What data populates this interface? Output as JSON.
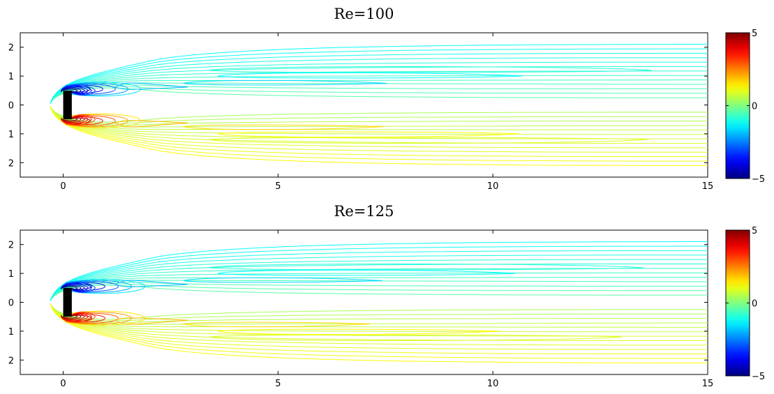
{
  "chart_data": [
    {
      "type": "contour",
      "title": "Re=100",
      "xlim": [
        -1,
        15
      ],
      "ylim": [
        -2.5,
        2.5
      ],
      "xticks": [
        0,
        5,
        10,
        15
      ],
      "yticks": [
        2,
        1,
        0,
        -1,
        -2
      ],
      "ytick_labels": [
        "2",
        "1",
        "0",
        "1",
        "2"
      ],
      "colorbar": {
        "min": -5,
        "max": 5,
        "tick_labels": [
          "5",
          "0",
          "−5"
        ],
        "colormap": "jet"
      },
      "obstacle": {
        "x": [
          0,
          0.2
        ],
        "y": [
          -0.5,
          0.5
        ],
        "color": "#000000"
      },
      "recirculation_lengths": {
        "upper_inner": 1.8,
        "upper_outer_cyan": 13.7,
        "lower_outer_yellow": 13.6
      }
    },
    {
      "type": "contour",
      "title": "Re=125",
      "xlim": [
        -1,
        15
      ],
      "ylim": [
        -2.5,
        2.5
      ],
      "xticks": [
        0,
        5,
        10,
        15
      ],
      "yticks": [
        2,
        1,
        0,
        -1,
        -2
      ],
      "ytick_labels": [
        "2",
        "1",
        "0",
        "1",
        "2"
      ],
      "colorbar": {
        "min": -5,
        "max": 5,
        "tick_labels": [
          "5",
          "0",
          "−5"
        ],
        "colormap": "jet"
      },
      "obstacle": {
        "x": [
          0,
          0.2
        ],
        "y": [
          -0.5,
          0.5
        ],
        "color": "#000000"
      },
      "recirculation_lengths": {
        "upper_inner": 1.9,
        "upper_outer_cyan": 13.5,
        "lower_outer_yellow": 13.0
      }
    }
  ]
}
